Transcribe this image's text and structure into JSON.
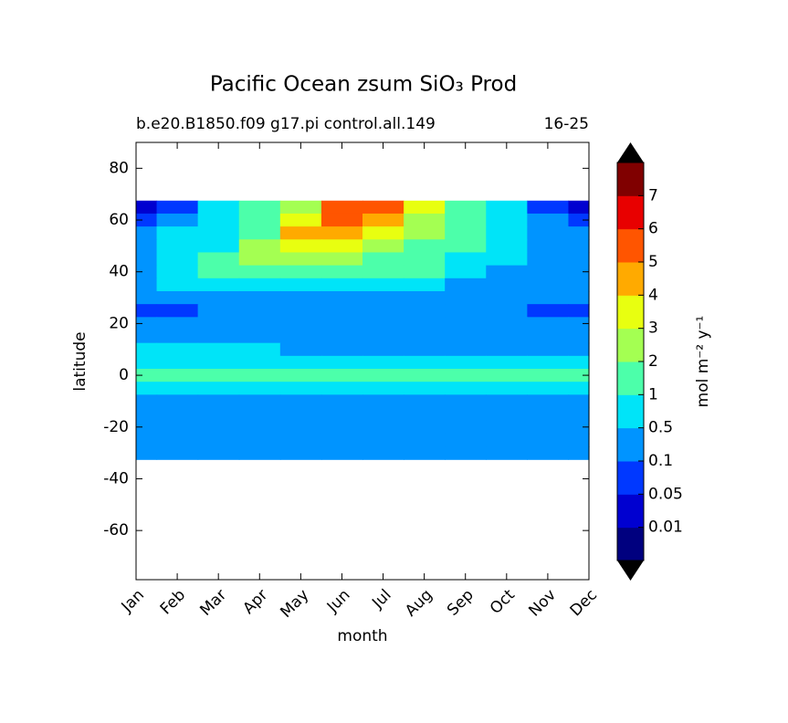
{
  "chart_data": {
    "type": "contourf",
    "title": "Pacific Ocean zsum SiO₃ Prod",
    "subtitle_left": "b.e20.B1850.f09 g17.pi control.all.149",
    "subtitle_right": "16-25",
    "xlabel": "month",
    "ylabel": "latitude",
    "colorbar_label": "mol m⁻² y⁻¹",
    "categories": [
      "Jan",
      "Feb",
      "Mar",
      "Apr",
      "May",
      "Jun",
      "Jul",
      "Aug",
      "Sep",
      "Oct",
      "Nov",
      "Dec"
    ],
    "lat": [
      65,
      60,
      55,
      50,
      45,
      40,
      35,
      30,
      25,
      20,
      15,
      10,
      5,
      0,
      -5,
      -10,
      -15,
      -20,
      -25,
      -30
    ],
    "z": [
      [
        0.03,
        0.08,
        0.5,
        1,
        2,
        5,
        5,
        3,
        1,
        0.5,
        0.08,
        0.03
      ],
      [
        0.08,
        0.3,
        0.7,
        1.5,
        3.5,
        5.5,
        4.5,
        2.5,
        1.5,
        0.7,
        0.3,
        0.08
      ],
      [
        0.3,
        0.6,
        0.8,
        1.5,
        4.5,
        4.5,
        3.5,
        2,
        1.5,
        0.8,
        0.4,
        0.3
      ],
      [
        0.4,
        0.7,
        0.9,
        2.5,
        3.5,
        3.5,
        2.5,
        1.5,
        1.2,
        0.8,
        0.4,
        0.3
      ],
      [
        0.3,
        0.6,
        1.2,
        2,
        2.5,
        2.5,
        1.5,
        1.2,
        0.9,
        0.6,
        0.3,
        0.3
      ],
      [
        0.3,
        0.6,
        1.2,
        1.5,
        1.5,
        1.5,
        1.2,
        1,
        0.8,
        0.4,
        0.3,
        0.3
      ],
      [
        0.2,
        0.5,
        0.6,
        0.8,
        0.9,
        0.8,
        0.6,
        0.5,
        0.3,
        0.2,
        0.2,
        0.2
      ],
      [
        0.2,
        0.2,
        0.2,
        0.2,
        0.2,
        0.2,
        0.2,
        0.2,
        0.2,
        0.2,
        0.2,
        0.3
      ],
      [
        0.08,
        0.08,
        0.3,
        0.3,
        0.3,
        0.3,
        0.3,
        0.3,
        0.3,
        0.3,
        0.08,
        0.08
      ],
      [
        0.2,
        0.2,
        0.2,
        0.2,
        0.2,
        0.2,
        0.2,
        0.2,
        0.2,
        0.2,
        0.2,
        0.2
      ],
      [
        0.3,
        0.3,
        0.3,
        0.3,
        0.3,
        0.3,
        0.3,
        0.3,
        0.3,
        0.3,
        0.3,
        0.3
      ],
      [
        0.6,
        0.6,
        0.6,
        0.6,
        0.4,
        0.3,
        0.3,
        0.3,
        0.3,
        0.3,
        0.3,
        0.3
      ],
      [
        0.6,
        0.6,
        0.6,
        0.6,
        0.6,
        0.7,
        0.7,
        0.8,
        0.8,
        0.8,
        0.7,
        0.6
      ],
      [
        1.2,
        1.2,
        1.2,
        1.2,
        1.2,
        1.2,
        1.2,
        1.2,
        1.3,
        1.5,
        1.3,
        1.2
      ],
      [
        0.7,
        0.7,
        0.7,
        0.7,
        0.7,
        0.7,
        0.7,
        0.7,
        0.7,
        0.7,
        0.7,
        0.7
      ],
      [
        0.3,
        0.3,
        0.3,
        0.3,
        0.3,
        0.3,
        0.3,
        0.3,
        0.3,
        0.3,
        0.3,
        0.3
      ],
      [
        0.3,
        0.3,
        0.3,
        0.3,
        0.3,
        0.3,
        0.3,
        0.3,
        0.3,
        0.3,
        0.3,
        0.3
      ],
      [
        0.3,
        0.3,
        0.3,
        0.3,
        0.3,
        0.3,
        0.3,
        0.3,
        0.3,
        0.3,
        0.3,
        0.3
      ],
      [
        0.3,
        0.3,
        0.3,
        0.3,
        0.3,
        0.3,
        0.3,
        0.3,
        0.3,
        0.3,
        0.3,
        0.3
      ],
      [
        0.3,
        0.3,
        0.3,
        0.3,
        0.3,
        0.3,
        0.3,
        0.3,
        0.3,
        0.3,
        0.3,
        0.3
      ]
    ],
    "levels": [
      0.01,
      0.05,
      0.1,
      0.5,
      1,
      2,
      3,
      4,
      5,
      6,
      7
    ],
    "colors": [
      "#00007f",
      "#0000d0",
      "#0038ff",
      "#0094ff",
      "#00e4f8",
      "#4cffaa",
      "#a4ff52",
      "#e8ff10",
      "#ffaa00",
      "#ff5500",
      "#e80000",
      "#800000"
    ],
    "extend": "both",
    "ylim": [
      -79,
      90
    ],
    "yticks": [
      -60,
      -40,
      -20,
      0,
      20,
      40,
      60,
      80
    ]
  }
}
